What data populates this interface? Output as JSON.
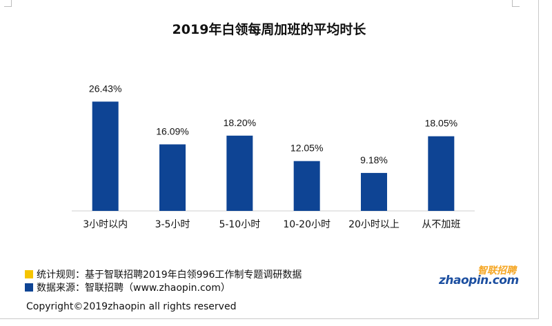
{
  "chart_data": {
    "type": "bar",
    "title": "2019年白领每周加班的平均时长",
    "categories": [
      "3小时以内",
      "3-5小时",
      "5-10小时",
      "10-20小时",
      "20小时以上",
      "从不加班"
    ],
    "values": [
      26.43,
      16.09,
      18.2,
      12.05,
      9.18,
      18.05
    ],
    "data_labels": [
      "26.43%",
      "16.09%",
      "18.20%",
      "12.05%",
      "9.18%",
      "18.05%"
    ],
    "ylim": [
      0,
      30
    ],
    "grid": false,
    "bar_color": "#0e4494",
    "legend_position": "none"
  },
  "notes": [
    {
      "text": "统计规则：基于智联招聘2019年白领996工作制专题调研数据",
      "color": "#f5c400"
    },
    {
      "text": "数据来源：智联招聘（www.zhaopin.com）",
      "color": "#0e4494"
    }
  ],
  "logo": {
    "cn": "智联招聘",
    "en": "zhaopin.com"
  },
  "copyright": "Copyright©2019zhaopin all rights reserved"
}
